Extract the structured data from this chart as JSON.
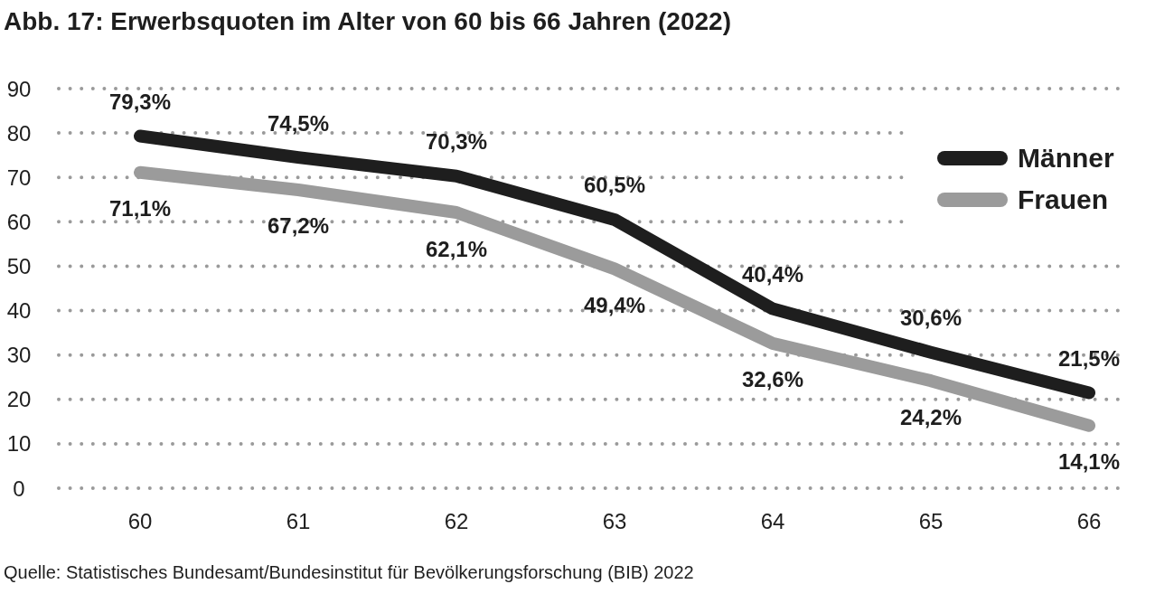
{
  "chart_data": {
    "type": "line",
    "title": "Abb. 17: Erwerbsquoten im Alter von 60 bis 66 Jahren (2022)",
    "categories": [
      "60",
      "61",
      "62",
      "63",
      "64",
      "65",
      "66"
    ],
    "series": [
      {
        "name": "Männer",
        "color": "#1e1e1e",
        "values": [
          79.3,
          74.5,
          70.3,
          60.5,
          40.4,
          30.6,
          21.5
        ],
        "value_labels": [
          "79,3%",
          "74,5%",
          "70,3%",
          "60,5%",
          "40,4%",
          "30,6%",
          "21,5%"
        ]
      },
      {
        "name": "Frauen",
        "color": "#9b9b9b",
        "values": [
          71.1,
          67.2,
          62.1,
          49.4,
          32.6,
          24.2,
          14.1
        ],
        "value_labels": [
          "71,1%",
          "67,2%",
          "62,1%",
          "49,4%",
          "32,6%",
          "24,2%",
          "14,1%"
        ]
      }
    ],
    "ylim": [
      0,
      90
    ],
    "yticks": [
      0,
      10,
      20,
      30,
      40,
      50,
      60,
      70,
      80,
      90
    ],
    "grid": "y",
    "legend": "top right",
    "marker": "none",
    "line_style": "solid",
    "annotations": [
      "Quelle: Statistisches Bundesamt/Bundesinstitut für Bevölkerungsforschung (BIB) 2022"
    ]
  }
}
